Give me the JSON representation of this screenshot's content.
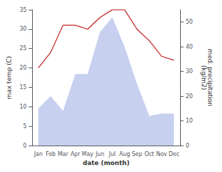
{
  "chart_data": {
    "type": "line",
    "xlabel": "date (month)",
    "ylabel": "max temp (C)",
    "y2label": "med. precipitation\n(kg/m2)",
    "categories": [
      "Jan",
      "Feb",
      "Mar",
      "Apr",
      "May",
      "Jun",
      "Jul",
      "Aug",
      "Sep",
      "Oct",
      "Nov",
      "Dec"
    ],
    "series": [
      {
        "type": "area",
        "axis": "y2",
        "color": "#c8d0f0",
        "values": [
          15,
          20,
          14,
          29,
          29,
          46,
          52,
          40,
          25,
          12,
          13,
          13
        ]
      },
      {
        "type": "line",
        "color": "#cc4444",
        "values": [
          20,
          24,
          31,
          31,
          30,
          33,
          35,
          35,
          30,
          27,
          23,
          22
        ]
      }
    ],
    "ylim": [
      0,
      35
    ],
    "yticks": [
      0,
      5,
      10,
      15,
      20,
      25,
      30,
      35
    ],
    "y2lim": [
      0,
      55
    ],
    "y2ticks": [
      0,
      10,
      20,
      30,
      40,
      50
    ],
    "grid": false
  }
}
